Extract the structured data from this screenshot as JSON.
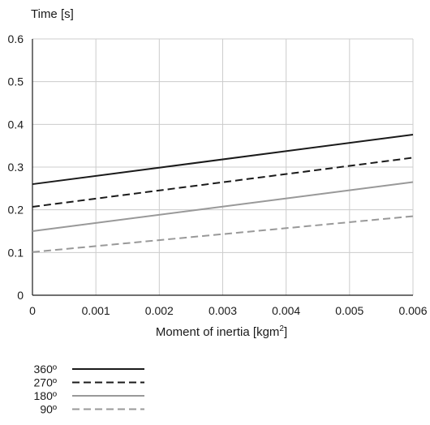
{
  "chart_data": {
    "type": "line",
    "title": "",
    "xlabel": "Moment of inertia [kgm²]",
    "xlabel_base": "Moment of inertia [kgm",
    "xlabel_sup": "2",
    "xlabel_end": "]",
    "ylabel": "Time [s]",
    "xlim": [
      0,
      0.006
    ],
    "ylim": [
      0,
      0.6
    ],
    "x_ticks": [
      0,
      0.001,
      0.002,
      0.003,
      0.004,
      0.005,
      0.006
    ],
    "x_tick_labels": [
      "0",
      "0.001",
      "0.002",
      "0.003",
      "0.004",
      "0.005",
      "0.006"
    ],
    "y_ticks": [
      0,
      0.1,
      0.2,
      0.3,
      0.4,
      0.5,
      0.6
    ],
    "y_tick_labels": [
      "0",
      "0.1",
      "0.2",
      "0.3",
      "0.4",
      "0.5",
      "0.6"
    ],
    "grid": true,
    "legend_position": "bottom-left",
    "series": [
      {
        "name": "360º",
        "x": [
          0,
          0.006
        ],
        "y": [
          0.26,
          0.376
        ],
        "color": "#1a1a1a",
        "dash": "solid"
      },
      {
        "name": "270º",
        "x": [
          0,
          0.006
        ],
        "y": [
          0.207,
          0.322
        ],
        "color": "#1a1a1a",
        "dash": "dashed"
      },
      {
        "name": "180º",
        "x": [
          0,
          0.006
        ],
        "y": [
          0.15,
          0.265
        ],
        "color": "#999999",
        "dash": "solid"
      },
      {
        "name": "90º",
        "x": [
          0,
          0.006
        ],
        "y": [
          0.101,
          0.185
        ],
        "color": "#999999",
        "dash": "dashed"
      }
    ]
  }
}
